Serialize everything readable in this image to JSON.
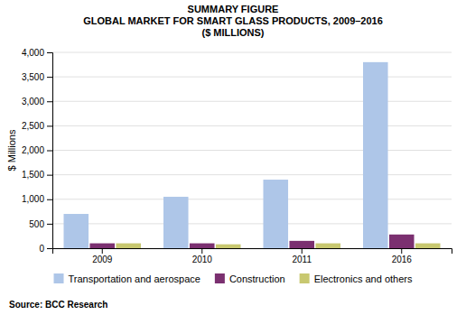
{
  "chart_data": {
    "type": "bar",
    "title": "SUMMARY FIGURE\nGLOBAL MARKET FOR SMART GLASS PRODUCTS, 2009–2016\n($ MILLIONS)",
    "y_label": "$ Millions",
    "categories": [
      "2009",
      "2010",
      "2011",
      "2016"
    ],
    "series": [
      {
        "name": "Transportation and aerospace",
        "color": "#aec6e8",
        "values": [
          700,
          1050,
          1400,
          3800
        ]
      },
      {
        "name": "Construction",
        "color": "#7b3070",
        "values": [
          100,
          100,
          150,
          280
        ]
      },
      {
        "name": "Electronics and others",
        "color": "#c8c870",
        "values": [
          100,
          80,
          100,
          100
        ]
      }
    ],
    "ylim": [
      0,
      4000
    ],
    "yticks": [
      0,
      500,
      {
        "value": 1000,
        "label": "1,000"
      },
      {
        "value": 1500,
        "label": "1,500"
      },
      {
        "value": 2000,
        "label": "2,000"
      },
      {
        "value": 2500,
        "label": "2,500"
      },
      {
        "value": 3000,
        "label": "3,000"
      },
      {
        "value": 3500,
        "label": "3,500"
      },
      {
        "value": 4000,
        "label": "4,000"
      }
    ],
    "grid": true,
    "legend": "bottom",
    "annotations": [
      "Source: BCC Research"
    ]
  }
}
